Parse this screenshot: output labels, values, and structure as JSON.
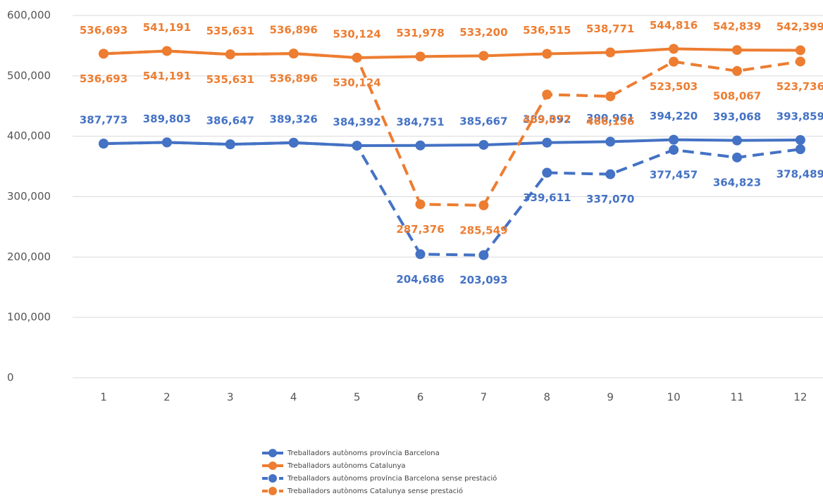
{
  "chart_data": {
    "type": "line",
    "categories": [
      "1",
      "2",
      "3",
      "4",
      "5",
      "6",
      "7",
      "8",
      "9",
      "10",
      "11",
      "12"
    ],
    "ylim": [
      0,
      600000
    ],
    "yticks": [
      0,
      {
        "value": 100000,
        "label": "100,000"
      },
      {
        "value": 200000,
        "label": "200,000"
      },
      {
        "value": 300000,
        "label": "300,000"
      },
      {
        "value": 400000,
        "label": "400,000"
      },
      {
        "value": 500000,
        "label": "500,000"
      },
      {
        "value": 600000,
        "label": "600,000"
      }
    ],
    "grid": true,
    "legend": "bottom",
    "series": [
      {
        "name": "Treballadors autònoms província Barcelona",
        "color": "#4472c4",
        "dashed": false,
        "values": [
          387773,
          389803,
          386647,
          389326,
          384392,
          384751,
          385667,
          389392,
          390961,
          394220,
          393068,
          393859
        ],
        "value_labels": [
          "387,773",
          "389,803",
          "386,647",
          "389,326",
          "384,392",
          "384,751",
          "385,667",
          "389,392",
          "390,961",
          "394,220",
          "393,068",
          "393,859"
        ]
      },
      {
        "name": "Treballadors autònoms Catalunya",
        "color": "#ed7d31",
        "dashed": false,
        "values": [
          536693,
          541191,
          535631,
          536896,
          530124,
          531978,
          533200,
          536515,
          538771,
          544816,
          542839,
          542399
        ],
        "value_labels": [
          "536,693",
          "541,191",
          "535,631",
          "536,896",
          "530,124",
          "531,978",
          "533,200",
          "536,515",
          "538,771",
          "544,816",
          "542,839",
          "542,399"
        ]
      },
      {
        "name": "Treballadors autònoms província Barcelona sense prestació",
        "color": "#4472c4",
        "dashed": true,
        "values": [
          387773,
          389803,
          386647,
          389326,
          384392,
          204686,
          203093,
          339611,
          337070,
          377457,
          364823,
          378489
        ],
        "value_labels": [
          null,
          null,
          null,
          null,
          null,
          "204,686",
          "203,093",
          "339,611",
          "337,070",
          "377,457",
          "364,823",
          "378,489"
        ]
      },
      {
        "name": "Treballadors autònoms Catalunya sense prestació",
        "color": "#ed7d31",
        "dashed": true,
        "values": [
          536693,
          541191,
          535631,
          536896,
          530124,
          287376,
          285549,
          469077,
          466136,
          523503,
          508067,
          523736
        ],
        "value_labels": [
          "536,693",
          "541,191",
          "535,631",
          "536,896",
          "530,124",
          "287,376",
          "285,549",
          "469,077",
          "466,136",
          "523,503",
          "508,067",
          "523,736"
        ]
      }
    ]
  }
}
